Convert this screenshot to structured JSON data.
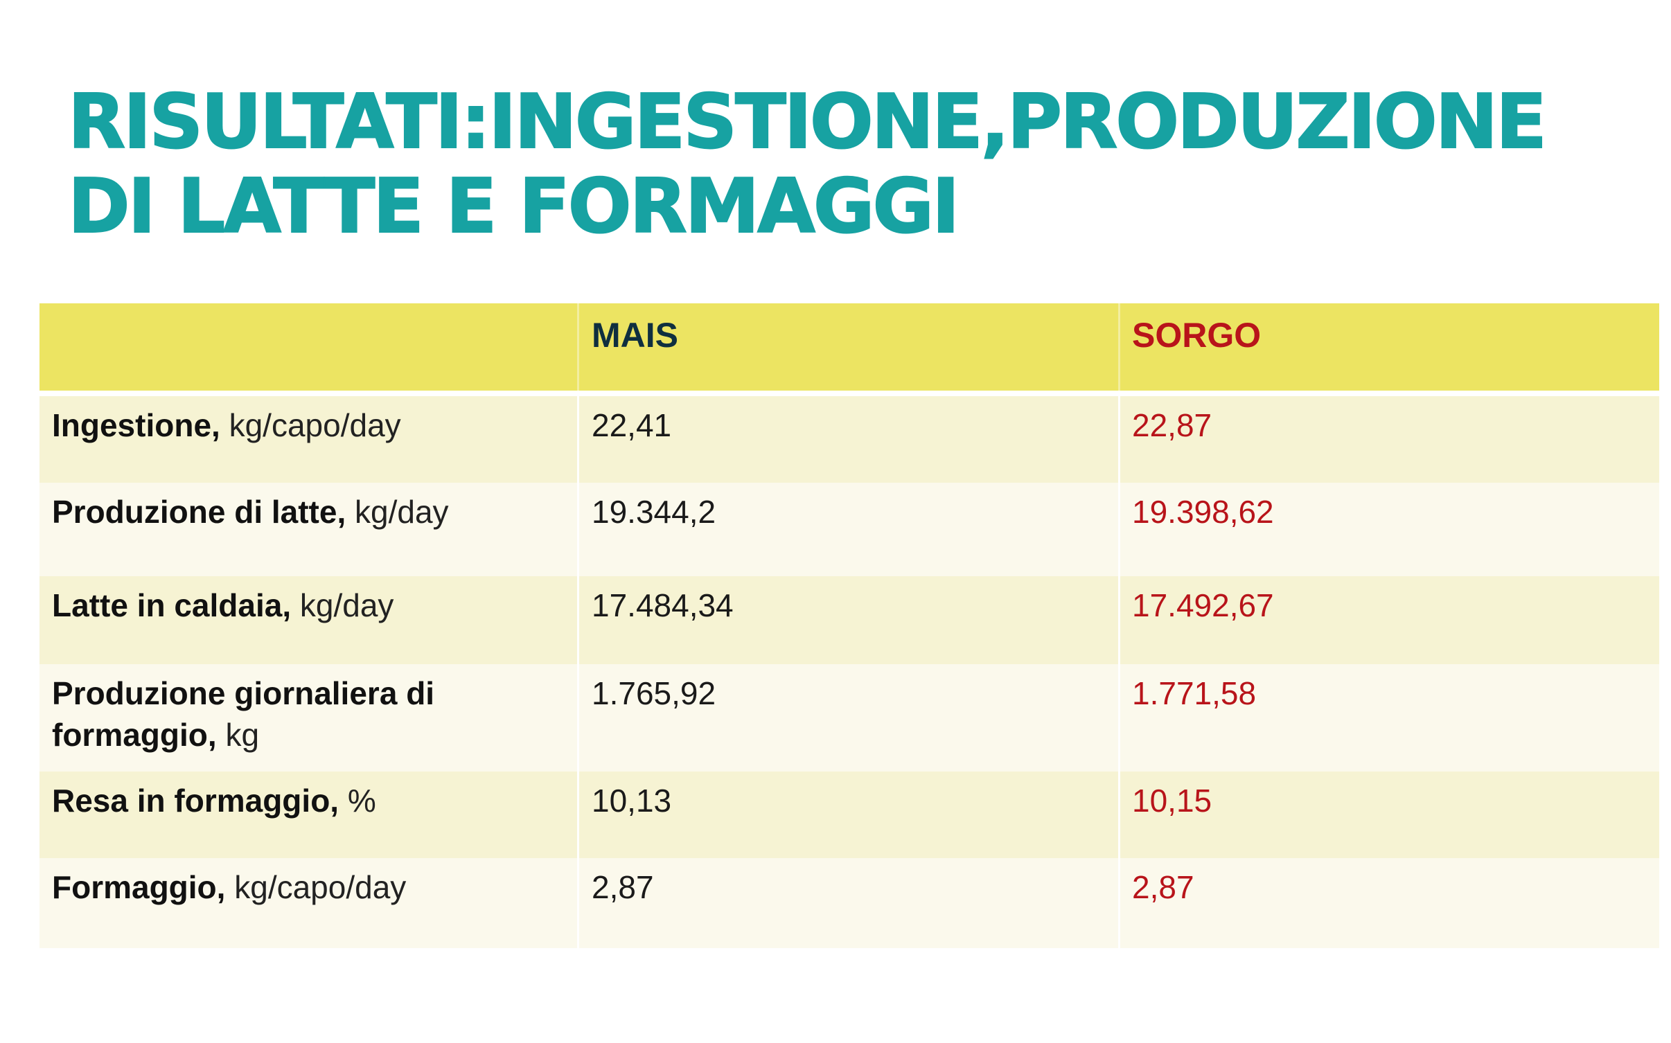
{
  "title": {
    "line1": "RISULTATI:INGESTIONE,PRODUZIONE",
    "line2": "DI LATTE E FORMAGGI",
    "color": "#17a2a2"
  },
  "table": {
    "header": {
      "col1": "",
      "col2": "MAIS",
      "col3": "SORGO",
      "background": "#ece462",
      "col2_color": "#0f2f3f",
      "col3_color": "#b8141a"
    },
    "rows": [
      {
        "label_bold": "Ingestione,",
        "label_unit": " kg/capo/day",
        "mais": "22,41",
        "sorgo": "22,87"
      },
      {
        "label_bold": "Produzione di latte,",
        "label_unit": " kg/day",
        "mais": "19.344,2",
        "sorgo": "19.398,62"
      },
      {
        "label_bold": "Latte in caldaia,",
        "label_unit": " kg/day",
        "mais": "17.484,34",
        "sorgo": "17.492,67"
      },
      {
        "label_bold": "Produzione giornaliera di formaggio,",
        "label_unit": " kg",
        "mais": "1.765,92",
        "sorgo": "1.771,58"
      },
      {
        "label_bold": "Resa in formaggio,",
        "label_unit": " %",
        "mais": "10,13",
        "sorgo": "10,15"
      },
      {
        "label_bold": "Formaggio,",
        "label_unit": " kg/capo/day",
        "mais": "2,87",
        "sorgo": "2,87"
      }
    ],
    "row_colors": {
      "odd": "#f6f3d3",
      "even": "#fbf9ec"
    }
  }
}
